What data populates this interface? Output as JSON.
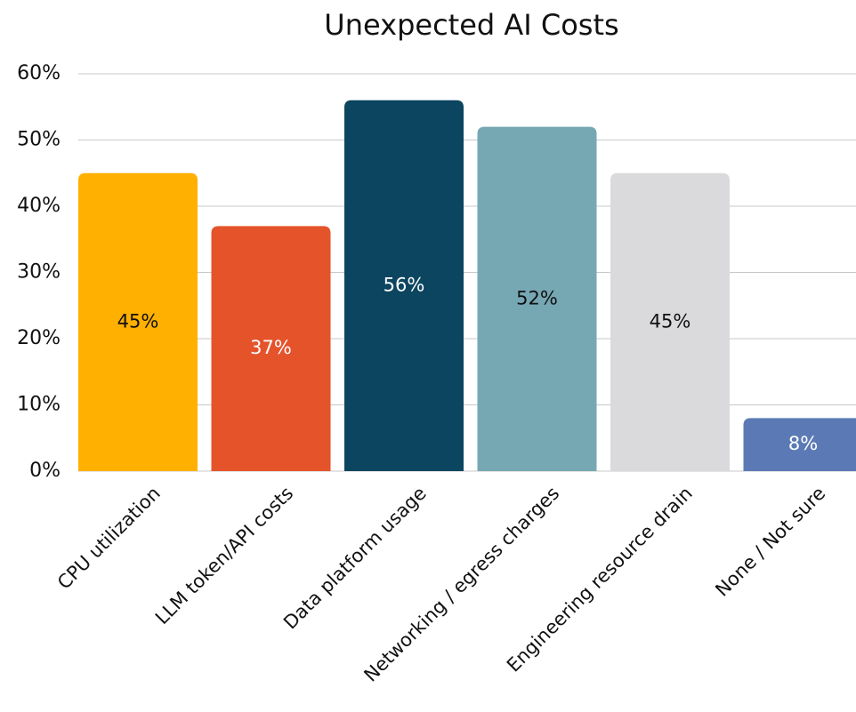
{
  "chart_data": {
    "type": "bar",
    "title": "Unexpected AI Costs",
    "categories": [
      "CPU utilization",
      "LLM token/API costs",
      "Data platform usage",
      "Networking / egress charges",
      "Engineering resource drain",
      "None / Not sure"
    ],
    "values": [
      45,
      37,
      56,
      52,
      45,
      8
    ],
    "value_labels": [
      "45%",
      "37%",
      "56%",
      "52%",
      "45%",
      "8%"
    ],
    "colors": [
      "#ffb000",
      "#e5532b",
      "#0c4560",
      "#76a8b4",
      "#dadadc",
      "#5b7ab5"
    ],
    "ylim": [
      0,
      60
    ],
    "yticks": [
      {
        "value": 0,
        "label": "0%"
      },
      {
        "value": 10,
        "label": "10%"
      },
      {
        "value": 20,
        "label": "20%"
      },
      {
        "value": 30,
        "label": "30%"
      },
      {
        "value": 40,
        "label": "40%"
      },
      {
        "value": 50,
        "label": "50%"
      },
      {
        "value": 60,
        "label": "60%"
      }
    ],
    "grid": true
  }
}
